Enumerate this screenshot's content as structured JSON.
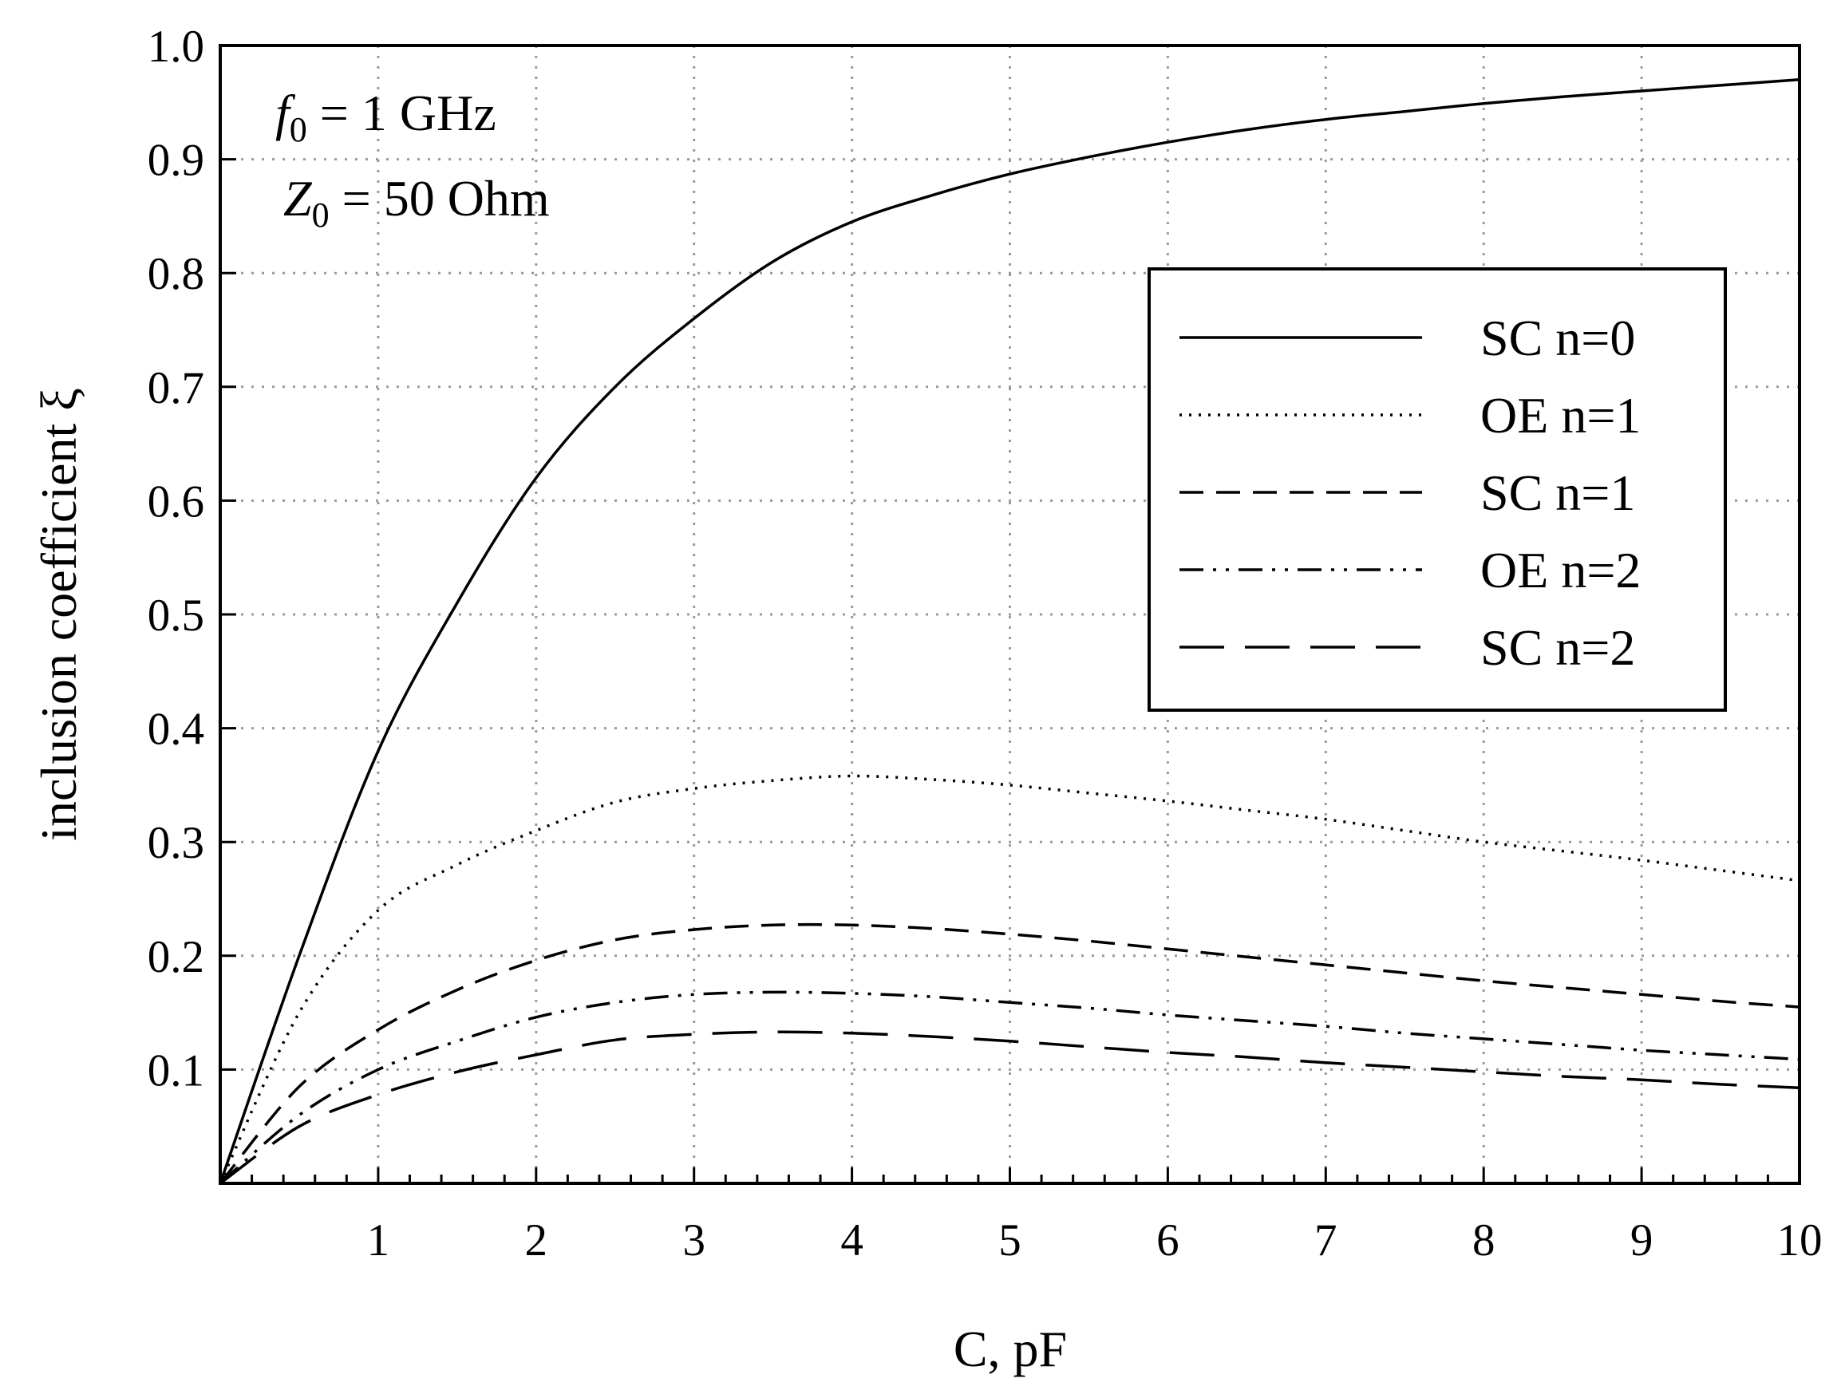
{
  "chart_data": {
    "type": "line",
    "title": "",
    "xlabel": "C, pF",
    "ylabel": "inclusion coefficient ξ",
    "xlim": [
      0,
      10
    ],
    "ylim": [
      0,
      1.0
    ],
    "x_ticks": [
      "1",
      "2",
      "3",
      "4",
      "5",
      "6",
      "7",
      "8",
      "9",
      "10"
    ],
    "y_ticks": [
      "0.1",
      "0.2",
      "0.3",
      "0.4",
      "0.5",
      "0.6",
      "0.7",
      "0.8",
      "0.9",
      "1.0"
    ],
    "grid": true,
    "legend_position": "upper-right",
    "annotations": {
      "f0": {
        "symbol": "f",
        "sub": "0",
        "rest": " = 1 GHz"
      },
      "z0": {
        "symbol": "Z",
        "sub": "0",
        "rest": " = 50 Ohm"
      }
    },
    "x": [
      0,
      0.5,
      1,
      1.5,
      2,
      2.5,
      3,
      3.5,
      4,
      4.5,
      5,
      5.5,
      6,
      6.5,
      7,
      7.5,
      8,
      8.5,
      9,
      9.5,
      10
    ],
    "series": [
      {
        "name": "SC n=0",
        "dash": "solid",
        "values": [
          0,
          0.2,
          0.38,
          0.51,
          0.62,
          0.7,
          0.76,
          0.81,
          0.845,
          0.868,
          0.887,
          0.902,
          0.915,
          0.926,
          0.935,
          0.942,
          0.949,
          0.955,
          0.96,
          0.965,
          0.97
        ]
      },
      {
        "name": "OE n=1",
        "dash": "dotted",
        "values": [
          0,
          0.15,
          0.24,
          0.28,
          0.31,
          0.335,
          0.347,
          0.354,
          0.358,
          0.355,
          0.35,
          0.343,
          0.336,
          0.328,
          0.32,
          0.31,
          0.3,
          0.292,
          0.284,
          0.275,
          0.266
        ]
      },
      {
        "name": "SC n=1",
        "dash": "dashed",
        "values": [
          0,
          0.085,
          0.135,
          0.17,
          0.196,
          0.214,
          0.223,
          0.227,
          0.227,
          0.224,
          0.219,
          0.213,
          0.206,
          0.199,
          0.192,
          0.185,
          0.178,
          0.172,
          0.166,
          0.16,
          0.155
        ]
      },
      {
        "name": "OE n=2",
        "dash": "dash-dot-dot",
        "values": [
          0,
          0.06,
          0.1,
          0.125,
          0.146,
          0.159,
          0.166,
          0.168,
          0.167,
          0.164,
          0.159,
          0.154,
          0.148,
          0.143,
          0.138,
          0.132,
          0.127,
          0.122,
          0.117,
          0.113,
          0.109
        ]
      },
      {
        "name": "SC n=2",
        "dash": "long-dash",
        "values": [
          0,
          0.05,
          0.078,
          0.098,
          0.113,
          0.126,
          0.131,
          0.133,
          0.132,
          0.129,
          0.125,
          0.12,
          0.115,
          0.111,
          0.106,
          0.102,
          0.098,
          0.094,
          0.091,
          0.087,
          0.084
        ]
      }
    ]
  }
}
